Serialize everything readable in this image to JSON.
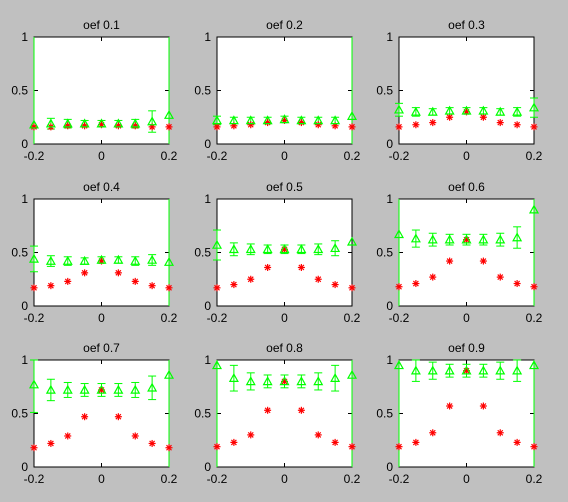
{
  "colors": {
    "background": "#c0c0c0",
    "axes": "#ffffff",
    "green": "#00ff00",
    "red": "#ff0000"
  },
  "chart_data": [
    {
      "type": "scatter",
      "title": "oef 0.1",
      "xlim": [
        -0.2,
        0.2
      ],
      "ylim": [
        0,
        1
      ],
      "xticks": [
        "-0.2",
        "0",
        "0.2"
      ],
      "yticks": [
        "0",
        "0.5",
        "1"
      ],
      "x": [
        -0.2,
        -0.15,
        -0.1,
        -0.05,
        0,
        0.05,
        0.1,
        0.15,
        0.2
      ],
      "green": [
        0.18,
        0.19,
        0.19,
        0.19,
        0.19,
        0.19,
        0.19,
        0.21,
        0.27
      ],
      "green_err": [
        null,
        0.05,
        0.04,
        0.03,
        0.03,
        0.03,
        0.04,
        0.1,
        null
      ],
      "green_full_lines": [
        -0.2,
        0.2
      ],
      "red": [
        0.16,
        0.16,
        0.17,
        0.17,
        0.18,
        0.17,
        0.17,
        0.16,
        0.16
      ]
    },
    {
      "type": "scatter",
      "title": "oef 0.2",
      "xlim": [
        -0.2,
        0.2
      ],
      "ylim": [
        0,
        1
      ],
      "xticks": [
        "-0.2",
        "0",
        "0.2"
      ],
      "yticks": [
        "0",
        "0.5",
        "1"
      ],
      "x": [
        -0.2,
        -0.15,
        -0.1,
        -0.05,
        0,
        0.05,
        0.1,
        0.15,
        0.2
      ],
      "green": [
        0.22,
        0.22,
        0.22,
        0.22,
        0.23,
        0.22,
        0.22,
        0.22,
        0.26
      ],
      "green_err": [
        0.04,
        0.03,
        0.03,
        0.03,
        0.03,
        0.03,
        0.03,
        0.03,
        null
      ],
      "green_full_lines": [
        0.2
      ],
      "red": [
        0.16,
        0.17,
        0.18,
        0.2,
        0.22,
        0.2,
        0.18,
        0.17,
        0.16
      ]
    },
    {
      "type": "scatter",
      "title": "oef 0.3",
      "xlim": [
        -0.2,
        0.2
      ],
      "ylim": [
        0,
        1
      ],
      "xticks": [
        "-0.2",
        "0",
        "0.2"
      ],
      "yticks": [
        "0",
        "0.5",
        "1"
      ],
      "x": [
        -0.2,
        -0.15,
        -0.1,
        -0.05,
        0,
        0.05,
        0.1,
        0.15,
        0.2
      ],
      "green": [
        0.32,
        0.3,
        0.3,
        0.31,
        0.31,
        0.31,
        0.3,
        0.3,
        0.34
      ],
      "green_err": [
        0.06,
        0.04,
        0.03,
        0.03,
        0.03,
        0.03,
        0.03,
        0.04,
        0.09
      ],
      "green_full_lines": [],
      "red": [
        0.16,
        0.18,
        0.2,
        0.25,
        0.3,
        0.25,
        0.2,
        0.18,
        0.16
      ]
    },
    {
      "type": "scatter",
      "title": "oef 0.4",
      "xlim": [
        -0.2,
        0.2
      ],
      "ylim": [
        0,
        1
      ],
      "xticks": [
        "-0.2",
        "0",
        "0.2"
      ],
      "yticks": [
        "0",
        "0.5",
        "1"
      ],
      "x": [
        -0.2,
        -0.15,
        -0.1,
        -0.05,
        0,
        0.05,
        0.1,
        0.15,
        0.2
      ],
      "green": [
        0.44,
        0.42,
        0.42,
        0.42,
        0.43,
        0.43,
        0.42,
        0.43,
        0.41
      ],
      "green_err": [
        0.12,
        0.05,
        0.04,
        0.03,
        0.03,
        0.03,
        0.04,
        0.05,
        null
      ],
      "green_full_lines": [
        0.2
      ],
      "red": [
        0.17,
        0.19,
        0.23,
        0.31,
        0.42,
        0.31,
        0.23,
        0.19,
        0.17
      ]
    },
    {
      "type": "scatter",
      "title": "oef 0.5",
      "xlim": [
        -0.2,
        0.2
      ],
      "ylim": [
        0,
        1
      ],
      "xticks": [
        "-0.2",
        "0",
        "0.2"
      ],
      "yticks": [
        "0",
        "0.5",
        "1"
      ],
      "x": [
        -0.2,
        -0.15,
        -0.1,
        -0.05,
        0,
        0.05,
        0.1,
        0.15,
        0.2
      ],
      "green": [
        0.57,
        0.53,
        0.53,
        0.53,
        0.53,
        0.53,
        0.53,
        0.54,
        0.6
      ],
      "green_err": [
        0.14,
        0.06,
        0.05,
        0.04,
        0.04,
        0.04,
        0.05,
        0.07,
        null
      ],
      "green_full_lines": [],
      "red": [
        0.17,
        0.2,
        0.25,
        0.36,
        0.53,
        0.36,
        0.25,
        0.2,
        0.17
      ]
    },
    {
      "type": "scatter",
      "title": "oef 0.6",
      "xlim": [
        -0.2,
        0.2
      ],
      "ylim": [
        0,
        1
      ],
      "xticks": [
        "-0.2",
        "0",
        "0.2"
      ],
      "yticks": [
        "0",
        "0.5",
        "1"
      ],
      "x": [
        -0.2,
        -0.15,
        -0.1,
        -0.05,
        0,
        0.05,
        0.1,
        0.15,
        0.2
      ],
      "green": [
        0.67,
        0.63,
        0.62,
        0.62,
        0.62,
        0.62,
        0.62,
        0.64,
        0.9
      ],
      "green_err": [
        null,
        0.08,
        0.06,
        0.05,
        0.05,
        0.05,
        0.06,
        0.1,
        null
      ],
      "green_full_lines": [
        -0.2,
        0.2
      ],
      "red": [
        0.18,
        0.21,
        0.27,
        0.42,
        0.62,
        0.42,
        0.27,
        0.21,
        0.18
      ]
    },
    {
      "type": "scatter",
      "title": "oef 0.7",
      "xlim": [
        -0.2,
        0.2
      ],
      "ylim": [
        0,
        1
      ],
      "xticks": [
        "-0.2",
        "0",
        "0.2"
      ],
      "yticks": [
        "0",
        "0.5",
        "1"
      ],
      "x": [
        -0.2,
        -0.15,
        -0.1,
        -0.05,
        0,
        0.05,
        0.1,
        0.15,
        0.2
      ],
      "green": [
        0.77,
        0.72,
        0.72,
        0.72,
        0.72,
        0.72,
        0.72,
        0.74,
        0.86
      ],
      "green_err": [
        0.26,
        0.1,
        0.07,
        0.06,
        0.06,
        0.06,
        0.07,
        0.11,
        null
      ],
      "green_full_lines": [
        0.2
      ],
      "red": [
        0.18,
        0.22,
        0.29,
        0.47,
        0.72,
        0.47,
        0.29,
        0.22,
        0.18
      ]
    },
    {
      "type": "scatter",
      "title": "oef 0.8",
      "xlim": [
        -0.2,
        0.2
      ],
      "ylim": [
        0,
        1
      ],
      "xticks": [
        "-0.2",
        "0",
        "0.2"
      ],
      "yticks": [
        "0",
        "0.5",
        "1"
      ],
      "x": [
        -0.2,
        -0.15,
        -0.1,
        -0.05,
        0,
        0.05,
        0.1,
        0.15,
        0.2
      ],
      "green": [
        0.95,
        0.83,
        0.8,
        0.8,
        0.8,
        0.8,
        0.8,
        0.83,
        0.86
      ],
      "green_err": [
        null,
        0.12,
        0.08,
        0.06,
        0.06,
        0.06,
        0.08,
        0.12,
        null
      ],
      "green_full_lines": [
        -0.2,
        0.2
      ],
      "red": [
        0.19,
        0.23,
        0.3,
        0.53,
        0.8,
        0.53,
        0.3,
        0.23,
        0.19
      ]
    },
    {
      "type": "scatter",
      "title": "oef 0.9",
      "xlim": [
        -0.2,
        0.2
      ],
      "ylim": [
        0,
        1
      ],
      "xticks": [
        "-0.2",
        "0",
        "0.2"
      ],
      "yticks": [
        "0",
        "0.5",
        "1"
      ],
      "x": [
        -0.2,
        -0.15,
        -0.1,
        -0.05,
        0,
        0.05,
        0.1,
        0.15,
        0.2
      ],
      "green": [
        0.95,
        0.9,
        0.9,
        0.9,
        0.9,
        0.9,
        0.9,
        0.9,
        0.95
      ],
      "green_err": [
        null,
        0.1,
        0.08,
        0.06,
        0.06,
        0.06,
        0.08,
        0.1,
        null
      ],
      "green_full_lines": [
        -0.2,
        0.2
      ],
      "red": [
        0.19,
        0.23,
        0.32,
        0.57,
        0.9,
        0.57,
        0.32,
        0.23,
        0.19
      ]
    }
  ]
}
